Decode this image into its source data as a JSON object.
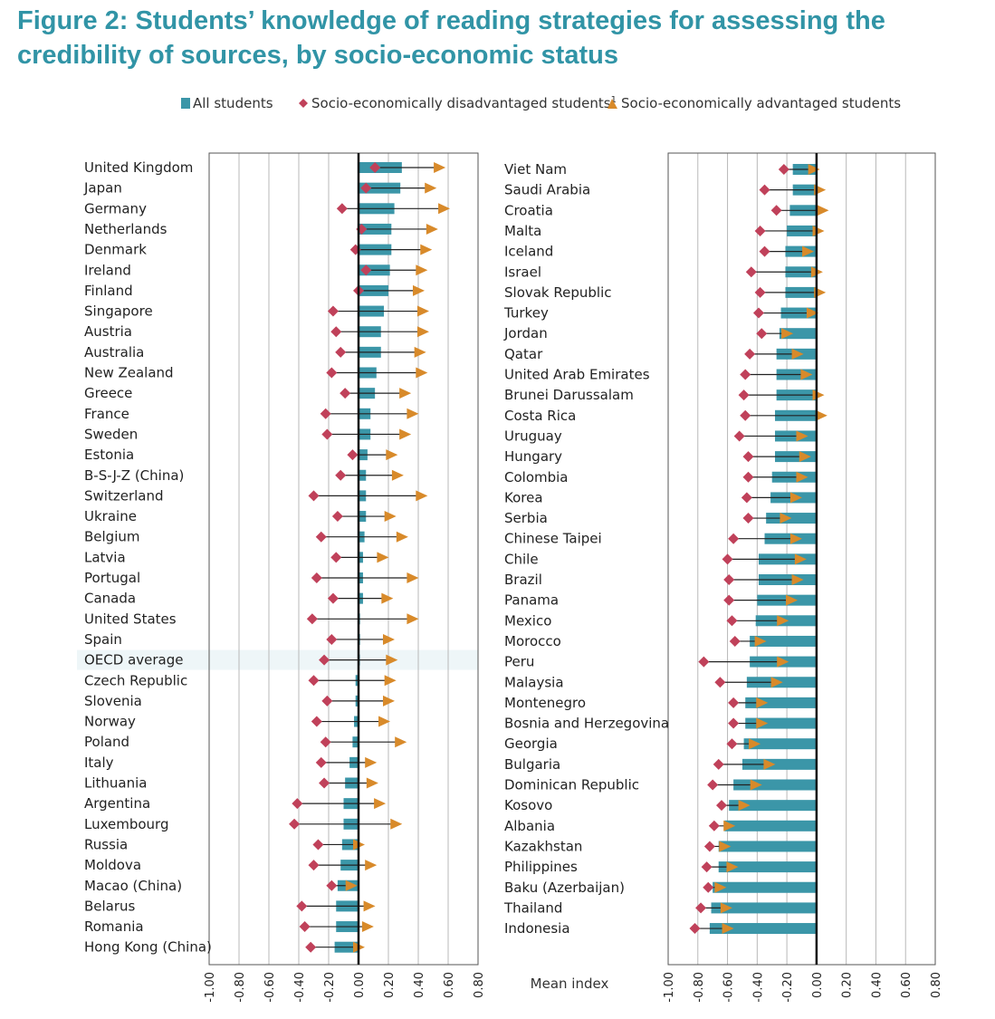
{
  "title": "Figure 2: Students’ knowledge of reading strategies for assessing the credibility of sources, by socio-economic status",
  "colors": {
    "title": "#3194a6",
    "bar": "#3b96a8",
    "disadvantaged": "#c0415a",
    "advantaged": "#d88a2a",
    "gridline": "#b8b8b8",
    "highlight": "#eef6f8"
  },
  "legend": {
    "all": "All students",
    "disadvantaged": "Socio-economically disadvantaged students",
    "disadvantaged_note": "1",
    "advantaged": "Socio-economically advantaged students"
  },
  "axis_label": "Mean index",
  "chart_data": [
    {
      "type": "bar",
      "panel": "left",
      "highlight": "OECD average",
      "xlim": [
        -1.0,
        0.8
      ],
      "ticks": [
        "-1.00",
        "-0.80",
        "-0.60",
        "-0.40",
        "-0.20",
        "0.00",
        "0.20",
        "0.40",
        "0.60",
        "0.80"
      ],
      "tick_values": [
        -1.0,
        -0.8,
        -0.6,
        -0.4,
        -0.2,
        0.0,
        0.2,
        0.4,
        0.6,
        0.8
      ],
      "categories": [
        "United Kingdom",
        "Japan",
        "Germany",
        "Netherlands",
        "Denmark",
        "Ireland",
        "Finland",
        "Singapore",
        "Austria",
        "Australia",
        "New Zealand",
        "Greece",
        "France",
        "Sweden",
        "Estonia",
        "B-S-J-Z (China)",
        "Switzerland",
        "Ukraine",
        "Belgium",
        "Latvia",
        "Portugal",
        "Canada",
        "United States",
        "Spain",
        "OECD average",
        "Czech Republic",
        "Slovenia",
        "Norway",
        "Poland",
        "Italy",
        "Lithuania",
        "Argentina",
        "Luxembourg",
        "Russia",
        "Moldova",
        "Macao (China)",
        "Belarus",
        "Romania",
        "Hong Kong (China)"
      ],
      "series": [
        {
          "name": "All students",
          "values": [
            0.29,
            0.28,
            0.24,
            0.22,
            0.22,
            0.21,
            0.2,
            0.17,
            0.15,
            0.15,
            0.12,
            0.11,
            0.08,
            0.08,
            0.06,
            0.05,
            0.05,
            0.05,
            0.04,
            0.03,
            0.03,
            0.03,
            0.01,
            0.01,
            0.0,
            -0.02,
            -0.02,
            -0.03,
            -0.04,
            -0.06,
            -0.09,
            -0.1,
            -0.1,
            -0.11,
            -0.12,
            -0.14,
            -0.15,
            -0.15,
            -0.16
          ]
        },
        {
          "name": "Socio-economically disadvantaged students",
          "values": [
            0.11,
            0.05,
            -0.11,
            0.02,
            -0.02,
            0.05,
            0.0,
            -0.17,
            -0.15,
            -0.12,
            -0.18,
            -0.09,
            -0.22,
            -0.21,
            -0.04,
            -0.12,
            -0.3,
            -0.14,
            -0.25,
            -0.15,
            -0.28,
            -0.17,
            -0.31,
            -0.18,
            -0.23,
            -0.3,
            -0.21,
            -0.28,
            -0.22,
            -0.25,
            -0.23,
            -0.41,
            -0.43,
            -0.27,
            -0.3,
            -0.18,
            -0.38,
            -0.36,
            -0.32
          ]
        },
        {
          "name": "Socio-economically advantaged students",
          "values": [
            0.54,
            0.48,
            0.57,
            0.49,
            0.45,
            0.42,
            0.4,
            0.43,
            0.43,
            0.41,
            0.42,
            0.31,
            0.36,
            0.31,
            0.22,
            0.26,
            0.42,
            0.21,
            0.29,
            0.16,
            0.36,
            0.19,
            0.36,
            0.2,
            0.22,
            0.21,
            0.2,
            0.17,
            0.28,
            0.08,
            0.09,
            0.14,
            0.25,
            0.0,
            0.08,
            -0.05,
            0.07,
            0.06,
            0.0
          ]
        }
      ]
    },
    {
      "type": "bar",
      "panel": "right",
      "xlim": [
        -1.0,
        0.8
      ],
      "ticks": [
        "-1.00",
        "-0.80",
        "-0.60",
        "-0.40",
        "-0.20",
        "0.00",
        "0.20",
        "0.40",
        "0.60",
        "0.80"
      ],
      "tick_values": [
        -1.0,
        -0.8,
        -0.6,
        -0.4,
        -0.2,
        0.0,
        0.2,
        0.4,
        0.6,
        0.8
      ],
      "categories": [
        "Viet Nam",
        "Saudi Arabia",
        "Croatia",
        "Malta",
        "Iceland",
        "Israel",
        "Slovak Republic",
        "Turkey",
        "Jordan",
        "Qatar",
        "United Arab Emirates",
        "Brunei Darussalam",
        "Costa Rica",
        "Uruguay",
        "Hungary",
        "Colombia",
        "Korea",
        "Serbia",
        "Chinese Taipei",
        "Chile",
        "Brazil",
        "Panama",
        "Mexico",
        "Morocco",
        "Peru",
        "Malaysia",
        "Montenegro",
        "Bosnia and Herzegovina",
        "Georgia",
        "Bulgaria",
        "Dominican Republic",
        "Kosovo",
        "Albania",
        "Kazakhstan",
        "Philippines",
        "Baku (Azerbaijan)",
        "Thailand",
        "Indonesia"
      ],
      "series": [
        {
          "name": "All students",
          "values": [
            -0.16,
            -0.16,
            -0.18,
            -0.2,
            -0.21,
            -0.21,
            -0.21,
            -0.24,
            -0.25,
            -0.27,
            -0.27,
            -0.27,
            -0.28,
            -0.28,
            -0.28,
            -0.3,
            -0.31,
            -0.34,
            -0.35,
            -0.39,
            -0.39,
            -0.4,
            -0.41,
            -0.45,
            -0.45,
            -0.47,
            -0.48,
            -0.48,
            -0.49,
            -0.5,
            -0.56,
            -0.59,
            -0.62,
            -0.66,
            -0.66,
            -0.7,
            -0.71,
            -0.72
          ]
        },
        {
          "name": "Socio-economically disadvantaged students",
          "values": [
            -0.22,
            -0.35,
            -0.27,
            -0.38,
            -0.35,
            -0.44,
            -0.38,
            -0.39,
            -0.37,
            -0.45,
            -0.48,
            -0.49,
            -0.48,
            -0.52,
            -0.46,
            -0.46,
            -0.47,
            -0.46,
            -0.56,
            -0.6,
            -0.59,
            -0.59,
            -0.57,
            -0.55,
            -0.76,
            -0.65,
            -0.56,
            -0.56,
            -0.57,
            -0.66,
            -0.7,
            -0.64,
            -0.69,
            -0.72,
            -0.74,
            -0.73,
            -0.78,
            -0.82
          ]
        },
        {
          "name": "Socio-economically advantaged students",
          "values": [
            -0.02,
            0.02,
            0.04,
            0.01,
            -0.06,
            0.0,
            0.02,
            -0.03,
            -0.2,
            -0.13,
            -0.07,
            0.01,
            0.03,
            -0.1,
            -0.08,
            -0.1,
            -0.14,
            -0.21,
            -0.14,
            -0.11,
            -0.13,
            -0.17,
            -0.23,
            -0.38,
            -0.23,
            -0.27,
            -0.37,
            -0.37,
            -0.42,
            -0.32,
            -0.41,
            -0.49,
            -0.59,
            -0.62,
            -0.57,
            -0.65,
            -0.61,
            -0.6
          ]
        }
      ]
    }
  ]
}
